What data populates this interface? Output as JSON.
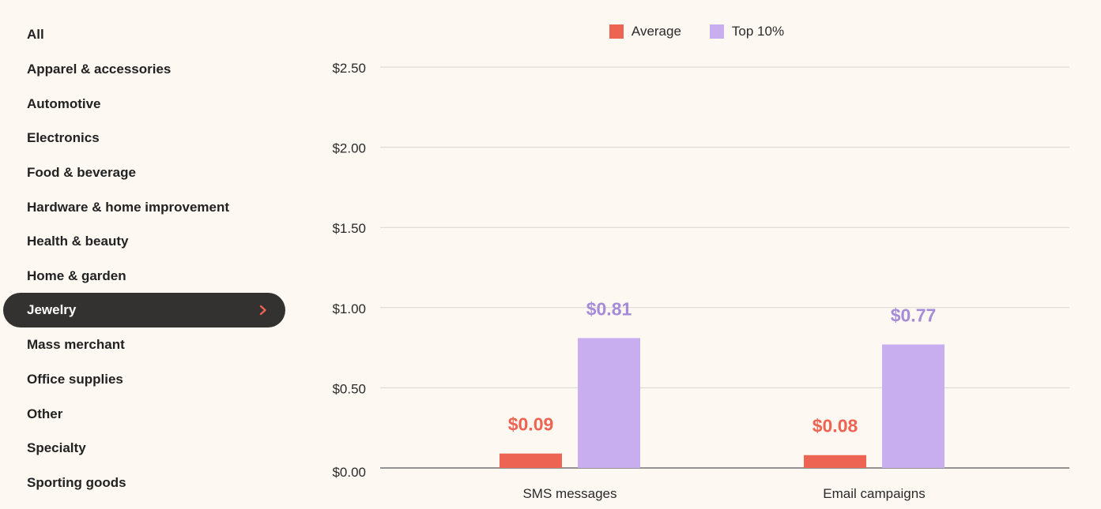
{
  "sidebar": {
    "items": [
      {
        "label": "All"
      },
      {
        "label": "Apparel & accessories"
      },
      {
        "label": "Automotive"
      },
      {
        "label": "Electronics"
      },
      {
        "label": "Food & beverage"
      },
      {
        "label": "Hardware & home improvement"
      },
      {
        "label": "Health & beauty"
      },
      {
        "label": "Home & garden"
      },
      {
        "label": "Jewelry",
        "active": true
      },
      {
        "label": "Mass merchant"
      },
      {
        "label": "Office supplies"
      },
      {
        "label": "Other"
      },
      {
        "label": "Specialty"
      },
      {
        "label": "Sporting goods"
      }
    ]
  },
  "colors": {
    "average": "#ee6452",
    "top10": "#c8aeee",
    "top10_label": "#a68bd8",
    "active_bg": "#333231",
    "chevron": "#ee6452"
  },
  "chart_data": {
    "type": "bar",
    "categories": [
      "SMS messages",
      "Email campaigns"
    ],
    "series": [
      {
        "name": "Average",
        "values": [
          0.09,
          0.08
        ],
        "labels": [
          "$0.09",
          "$0.08"
        ]
      },
      {
        "name": "Top 10%",
        "values": [
          0.81,
          0.77
        ],
        "labels": [
          "$0.81",
          "$0.77"
        ]
      }
    ],
    "ylim": [
      0,
      2.5
    ],
    "yticks": [
      0,
      0.5,
      1.0,
      1.5,
      2.0,
      2.5
    ],
    "ytick_labels": [
      "$0.00",
      "$0.50",
      "$1.00",
      "$1.50",
      "$2.00",
      "$2.50"
    ],
    "legend_position": "top-center",
    "grid": true
  }
}
